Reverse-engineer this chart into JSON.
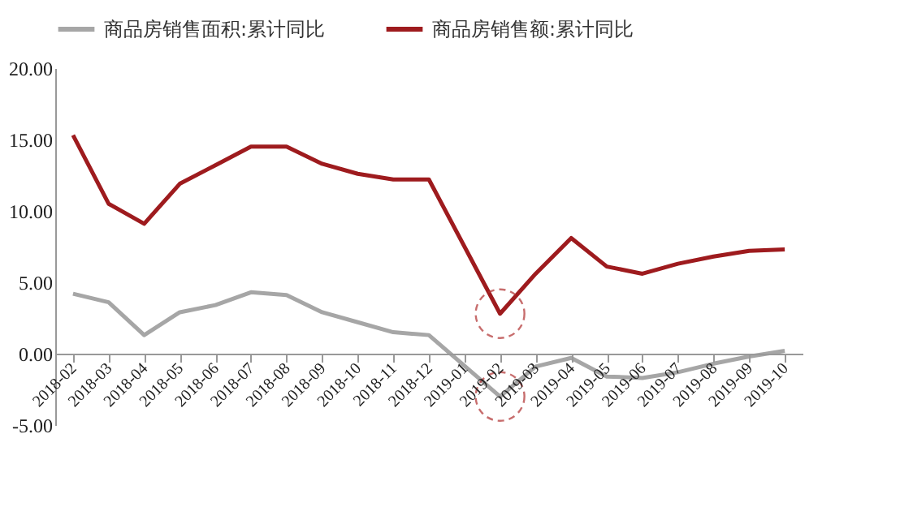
{
  "chart_data": {
    "type": "line",
    "categories": [
      "2018-02",
      "2018-03",
      "2018-04",
      "2018-05",
      "2018-06",
      "2018-07",
      "2018-08",
      "2018-09",
      "2018-10",
      "2018-11",
      "2018-12",
      "2019-01",
      "2019-02",
      "2019-03",
      "2019-04",
      "2019-05",
      "2019-06",
      "2019-07",
      "2019-08",
      "2019-09",
      "2019-10"
    ],
    "series": [
      {
        "name": "商品房销售面积:累计同比",
        "color": "#a6a6a6",
        "values": [
          4.2,
          3.6,
          1.3,
          2.9,
          3.4,
          4.3,
          4.1,
          2.9,
          2.2,
          1.5,
          1.3,
          null,
          -3.0,
          -0.9,
          -0.3,
          -1.6,
          -1.7,
          -1.3,
          -0.7,
          -0.2,
          0.2
        ]
      },
      {
        "name": "商品房销售额:累计同比",
        "color": "#9e1b1e",
        "values": [
          15.3,
          10.5,
          9.1,
          11.9,
          13.2,
          14.5,
          14.5,
          13.3,
          12.6,
          12.2,
          12.2,
          null,
          2.8,
          5.6,
          8.1,
          6.1,
          5.6,
          6.3,
          6.8,
          7.2,
          7.3
        ]
      }
    ],
    "ylim": [
      -5,
      20
    ],
    "yticks": [
      {
        "value": -5,
        "label": "-5.00"
      },
      {
        "value": 0,
        "label": "0.00"
      },
      {
        "value": 5,
        "label": "5.00"
      },
      {
        "value": 10,
        "label": "10.00"
      },
      {
        "value": 15,
        "label": "15.00"
      },
      {
        "value": 20,
        "label": "20.00"
      }
    ],
    "grid": false,
    "legend": "top",
    "marker": "none",
    "line_style": "solid"
  }
}
